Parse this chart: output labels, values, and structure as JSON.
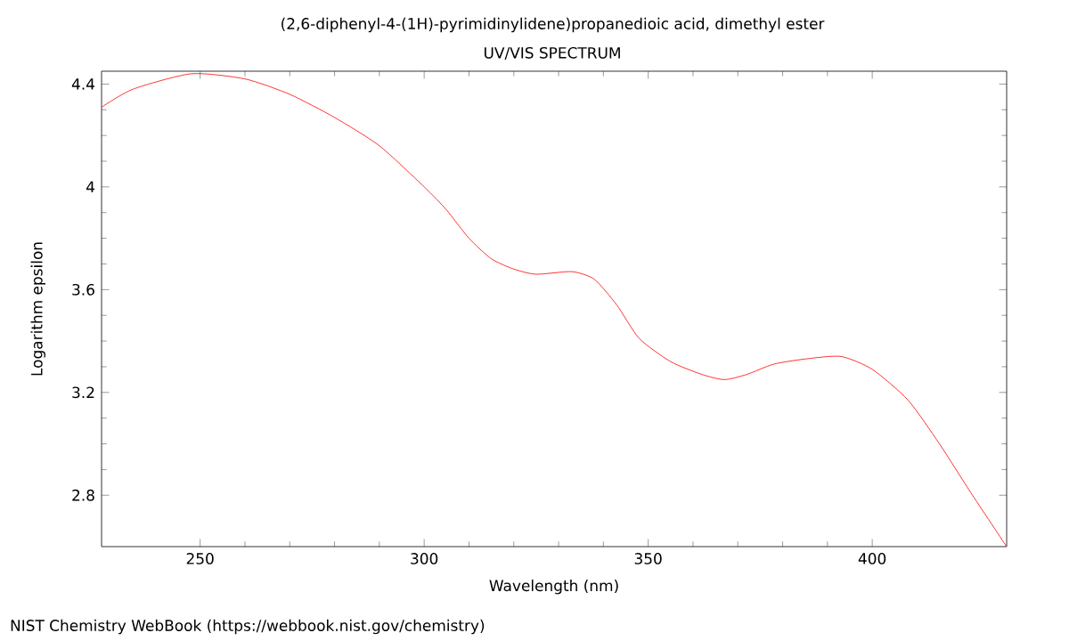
{
  "chart_data": {
    "type": "line",
    "title": "(2,6-diphenyl-4-(1H)-pyrimidinylidene)propanedioic acid, dimethyl ester",
    "subtitle": "UV/VIS SPECTRUM",
    "xlabel": "Wavelength (nm)",
    "ylabel": "Logarithm epsilon",
    "annotations": [
      "NIST Chemistry WebBook (https://webbook.nist.gov/chemistry)"
    ],
    "x": [
      228,
      235,
      248,
      260,
      270,
      280,
      290,
      300,
      305,
      310,
      315,
      320,
      325,
      333,
      338,
      343,
      348,
      355,
      362,
      367,
      372,
      378,
      385,
      393,
      400,
      408,
      415,
      422,
      430
    ],
    "series": [
      {
        "color": "#ff0000",
        "values": [
          4.31,
          4.38,
          4.44,
          4.42,
          4.36,
          4.27,
          4.16,
          4.0,
          3.91,
          3.8,
          3.72,
          3.68,
          3.66,
          3.67,
          3.64,
          3.54,
          3.41,
          3.32,
          3.27,
          3.25,
          3.27,
          3.31,
          3.33,
          3.34,
          3.29,
          3.17,
          3.0,
          2.81,
          2.6
        ]
      }
    ],
    "xlim": [
      228,
      430
    ],
    "ylim": [
      2.6,
      4.45
    ],
    "xticks": [
      250,
      300,
      350,
      400
    ],
    "yticks": [
      2.8,
      3.2,
      3.6,
      4,
      4.4
    ],
    "marker": "none",
    "line_style": "solid"
  }
}
